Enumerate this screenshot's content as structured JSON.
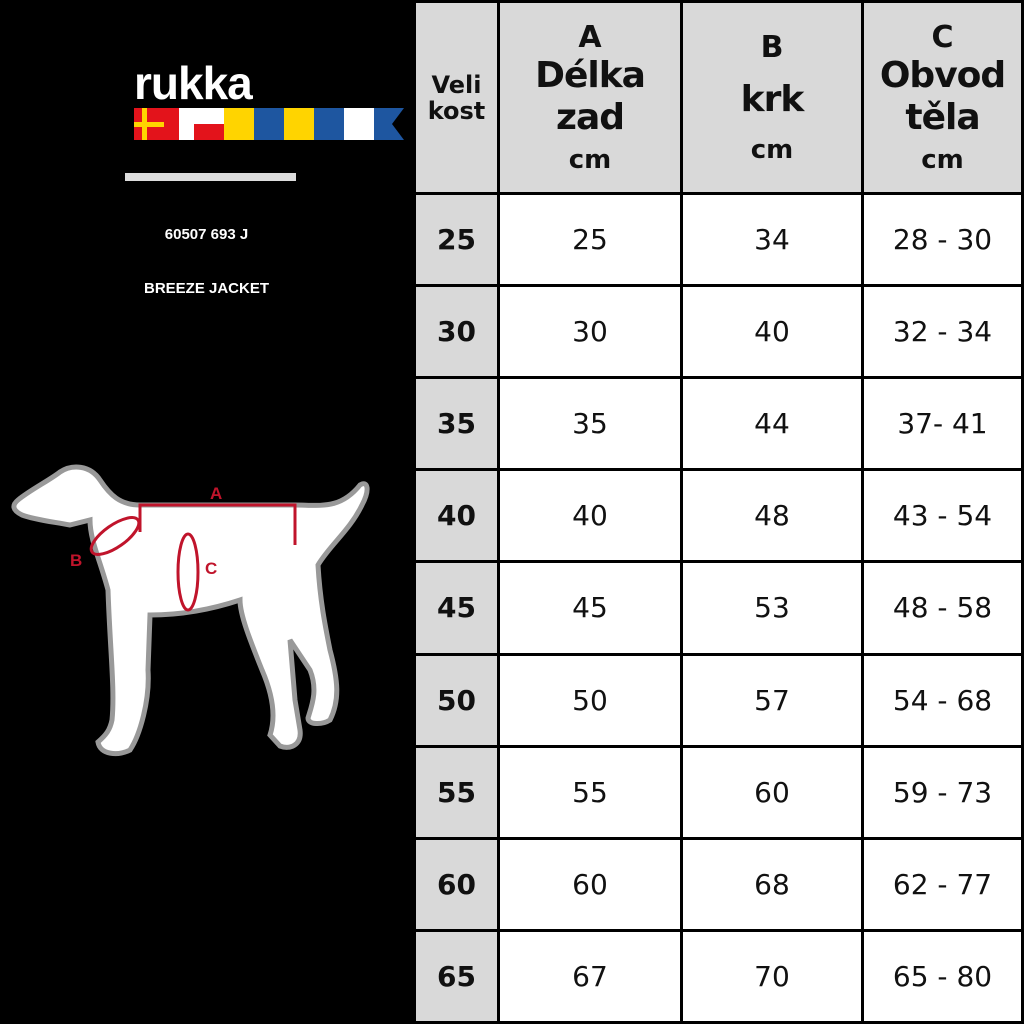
{
  "brand": {
    "name": "rukka",
    "flag_colors": [
      "#e3131b",
      "#e3131b",
      "#ffffff",
      "#ffd400",
      "#1e56a0",
      "#ffd400",
      "#1e56a0",
      "#ffffff",
      "#1e56a0"
    ]
  },
  "product": {
    "code": "60507 693 J",
    "name": "BREEZE JACKET"
  },
  "diagram": {
    "label_a": "A",
    "label_b": "B",
    "label_c": "C",
    "marker_color": "#c0142b"
  },
  "table": {
    "headers": [
      {
        "letter": "",
        "name": "Veli kost",
        "unit": ""
      },
      {
        "letter": "A",
        "name": "Délka zad",
        "unit": "cm"
      },
      {
        "letter": "B",
        "name": "krk",
        "unit": "cm"
      },
      {
        "letter": "C",
        "name": "Obvod těla",
        "unit": "cm"
      }
    ],
    "rows": [
      [
        "25",
        "25",
        "34",
        "28 - 30"
      ],
      [
        "30",
        "30",
        "40",
        "32 - 34"
      ],
      [
        "35",
        "35",
        "44",
        "37- 41"
      ],
      [
        "40",
        "40",
        "48",
        "43 - 54"
      ],
      [
        "45",
        "45",
        "53",
        "48 - 58"
      ],
      [
        "50",
        "50",
        "57",
        "54 - 68"
      ],
      [
        "55",
        "55",
        "60",
        "59 - 73"
      ],
      [
        "60",
        "60",
        "68",
        "62 - 77"
      ],
      [
        "65",
        "67",
        "70",
        "65 - 80"
      ]
    ]
  }
}
